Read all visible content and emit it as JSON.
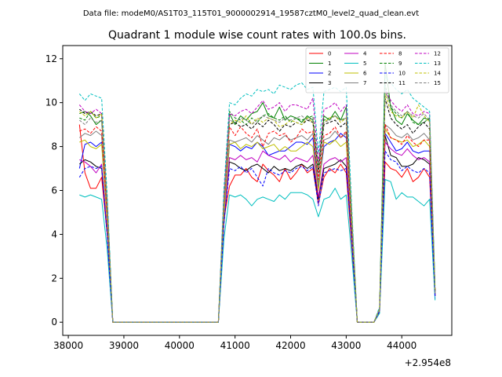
{
  "suptitle": "Data file: modeM0/AS1T03_115T01_9000002914_19587cztM0_level2_quad_clean.evt",
  "chart_data": {
    "type": "line",
    "title": "Quadrant 1 module wise count rates with 100.0s bins.",
    "xlabel": "",
    "ylabel": "",
    "x_offset_label": "+2.954e8",
    "xlim": [
      37900,
      44900
    ],
    "ylim": [
      -0.6,
      12.6
    ],
    "xticks": [
      "38000",
      "39000",
      "40000",
      "41000",
      "42000",
      "43000",
      "44000"
    ],
    "yticks": [
      "0",
      "2",
      "4",
      "6",
      "8",
      "10",
      "12"
    ],
    "grid": false,
    "legend_position": "top-right",
    "x": [
      38200,
      38300,
      38400,
      38500,
      38600,
      38700,
      38800,
      38900,
      39000,
      39100,
      39200,
      39300,
      39400,
      39500,
      39600,
      39700,
      39800,
      39900,
      40000,
      40100,
      40200,
      40300,
      40400,
      40500,
      40600,
      40700,
      40800,
      40900,
      41000,
      41100,
      41200,
      41300,
      41400,
      41500,
      41600,
      41700,
      41800,
      41900,
      42000,
      42100,
      42200,
      42300,
      42400,
      42500,
      42600,
      42700,
      42800,
      42900,
      43000,
      43100,
      43200,
      43300,
      43400,
      43500,
      43600,
      43700,
      43800,
      43900,
      44000,
      44100,
      44200,
      44300,
      44400,
      44500,
      44600
    ],
    "series": [
      {
        "name": "0",
        "color": "#ff0000",
        "dash": "solid",
        "values": [
          9.0,
          6.8,
          6.1,
          6.1,
          6.6,
          4.0,
          0,
          0,
          0,
          0,
          0,
          0,
          0,
          0,
          0,
          0,
          0,
          0,
          0,
          0,
          0,
          0,
          0,
          0,
          0,
          0,
          4.7,
          6.2,
          6.7,
          6.7,
          7.0,
          6.6,
          6.4,
          7.2,
          6.9,
          6.7,
          6.4,
          7.0,
          6.5,
          6.8,
          7.2,
          6.8,
          7.0,
          5.4,
          6.6,
          7.0,
          6.8,
          7.2,
          6.8,
          3.5,
          0,
          0,
          0,
          0,
          0.5,
          7.3,
          7.0,
          6.9,
          6.6,
          7.0,
          6.4,
          6.6,
          7.0,
          6.6,
          1.2
        ]
      },
      {
        "name": "1",
        "color": "#008000",
        "dash": "solid",
        "values": [
          9.5,
          9.6,
          9.4,
          9.0,
          9.2,
          5.5,
          0,
          0,
          0,
          0,
          0,
          0,
          0,
          0,
          0,
          0,
          0,
          0,
          0,
          0,
          0,
          0,
          0,
          0,
          0,
          0,
          5.5,
          9.5,
          9.0,
          9.4,
          9.2,
          9.5,
          9.6,
          10.0,
          9.4,
          9.3,
          9.8,
          9.2,
          9.4,
          9.3,
          9.1,
          9.4,
          9.2,
          7.0,
          9.4,
          9.2,
          9.6,
          9.2,
          9.8,
          4.8,
          0,
          0,
          0,
          0,
          0.6,
          11.8,
          9.8,
          9.2,
          9.0,
          9.5,
          9.2,
          9.0,
          9.3,
          9.2,
          1.4
        ]
      },
      {
        "name": "2",
        "color": "#0000ff",
        "dash": "solid",
        "values": [
          7.0,
          8.1,
          8.2,
          8.0,
          8.2,
          4.6,
          0,
          0,
          0,
          0,
          0,
          0,
          0,
          0,
          0,
          0,
          0,
          0,
          0,
          0,
          0,
          0,
          0,
          0,
          0,
          0,
          5.0,
          8.1,
          8.0,
          7.8,
          8.0,
          7.9,
          8.2,
          8.0,
          7.6,
          7.7,
          7.8,
          7.8,
          8.0,
          8.2,
          8.2,
          8.1,
          8.4,
          6.1,
          8.0,
          8.2,
          8.3,
          8.6,
          8.4,
          4.2,
          0,
          0,
          0,
          0,
          0.5,
          8.6,
          8.2,
          7.8,
          7.9,
          8.2,
          7.8,
          7.7,
          7.8,
          7.8,
          1.3
        ]
      },
      {
        "name": "3",
        "color": "#000000",
        "dash": "solid",
        "values": [
          7.2,
          7.4,
          7.3,
          7.1,
          7.0,
          4.0,
          0,
          0,
          0,
          0,
          0,
          0,
          0,
          0,
          0,
          0,
          0,
          0,
          0,
          0,
          0,
          0,
          0,
          0,
          0,
          0,
          4.5,
          7.3,
          7.2,
          7.0,
          6.9,
          7.1,
          7.2,
          7.0,
          6.8,
          7.1,
          6.9,
          7.0,
          6.9,
          7.1,
          7.2,
          7.0,
          7.2,
          5.6,
          7.0,
          7.1,
          7.2,
          7.4,
          7.1,
          3.8,
          0,
          0,
          0,
          0,
          0.5,
          8.5,
          7.6,
          7.5,
          7.1,
          7.1,
          7.2,
          7.5,
          7.4,
          7.2,
          1.2
        ]
      },
      {
        "name": "4",
        "color": "#c000c0",
        "dash": "solid",
        "values": [
          7.4,
          7.3,
          7.1,
          6.8,
          7.2,
          4.1,
          0,
          0,
          0,
          0,
          0,
          0,
          0,
          0,
          0,
          0,
          0,
          0,
          0,
          0,
          0,
          0,
          0,
          0,
          0,
          0,
          4.6,
          7.5,
          7.4,
          7.6,
          7.4,
          7.5,
          7.3,
          7.8,
          7.6,
          7.5,
          7.4,
          7.6,
          7.3,
          7.5,
          7.4,
          7.3,
          7.6,
          5.7,
          7.2,
          7.4,
          7.5,
          7.3,
          7.5,
          3.9,
          0,
          0,
          0,
          0,
          0.5,
          8.2,
          7.9,
          7.7,
          7.6,
          7.9,
          7.6,
          7.4,
          7.5,
          7.3,
          1.2
        ]
      },
      {
        "name": "5",
        "color": "#00bfbf",
        "dash": "solid",
        "values": [
          5.8,
          5.7,
          5.8,
          5.7,
          5.6,
          3.3,
          0,
          0,
          0,
          0,
          0,
          0,
          0,
          0,
          0,
          0,
          0,
          0,
          0,
          0,
          0,
          0,
          0,
          0,
          0,
          0,
          3.8,
          5.8,
          5.7,
          5.8,
          5.6,
          5.3,
          5.6,
          5.7,
          5.6,
          5.5,
          5.8,
          5.6,
          5.9,
          5.9,
          5.9,
          5.8,
          5.6,
          4.8,
          5.6,
          5.7,
          6.1,
          5.6,
          5.8,
          3.0,
          0,
          0,
          0,
          0,
          0.4,
          6.5,
          6.4,
          5.6,
          5.9,
          5.7,
          5.7,
          5.5,
          5.3,
          5.6,
          1.0
        ]
      },
      {
        "name": "6",
        "color": "#bfbf00",
        "dash": "solid",
        "values": [
          8.2,
          8.3,
          8.0,
          7.9,
          8.1,
          4.5,
          0,
          0,
          0,
          0,
          0,
          0,
          0,
          0,
          0,
          0,
          0,
          0,
          0,
          0,
          0,
          0,
          0,
          0,
          0,
          0,
          4.9,
          8.1,
          8.2,
          7.9,
          8.1,
          8.0,
          8.2,
          7.9,
          8.0,
          8.1,
          7.8,
          8.0,
          7.8,
          7.8,
          8.0,
          8.2,
          8.0,
          6.0,
          8.2,
          8.1,
          8.3,
          8.0,
          8.2,
          4.1,
          0,
          0,
          0,
          0,
          0.5,
          8.8,
          8.4,
          8.3,
          8.2,
          8.3,
          8.0,
          8.1,
          8.3,
          8.0,
          1.3
        ]
      },
      {
        "name": "7",
        "color": "#808080",
        "dash": "solid",
        "values": [
          8.4,
          8.6,
          8.5,
          8.7,
          8.5,
          4.8,
          0,
          0,
          0,
          0,
          0,
          0,
          0,
          0,
          0,
          0,
          0,
          0,
          0,
          0,
          0,
          0,
          0,
          0,
          0,
          0,
          5.2,
          8.3,
          8.2,
          8.3,
          8.4,
          8.2,
          8.5,
          8.3,
          8.1,
          8.4,
          8.3,
          8.5,
          8.3,
          8.4,
          8.5,
          8.3,
          8.6,
          6.3,
          8.3,
          8.4,
          8.7,
          8.4,
          8.6,
          4.3,
          0,
          0,
          0,
          0,
          0.5,
          9.0,
          8.8,
          8.5,
          8.4,
          8.6,
          8.3,
          8.4,
          8.6,
          8.3,
          1.3
        ]
      },
      {
        "name": "8",
        "color": "#ff0000",
        "dash": "dashed",
        "values": [
          8.7,
          8.8,
          8.6,
          8.9,
          8.7,
          4.9,
          0,
          0,
          0,
          0,
          0,
          0,
          0,
          0,
          0,
          0,
          0,
          0,
          0,
          0,
          0,
          0,
          0,
          0,
          0,
          0,
          5.4,
          8.9,
          8.5,
          8.9,
          8.6,
          8.4,
          8.8,
          8.0,
          8.6,
          8.7,
          8.5,
          8.6,
          8.2,
          8.4,
          8.8,
          8.6,
          8.7,
          6.5,
          8.5,
          8.6,
          8.9,
          8.4,
          8.7,
          4.4,
          0,
          0,
          0,
          0,
          0.6,
          9.0,
          8.4,
          8.3,
          8.1,
          8.5,
          8.2,
          8.0,
          8.3,
          8.3,
          1.4
        ]
      },
      {
        "name": "9",
        "color": "#008000",
        "dash": "dashed",
        "values": [
          9.3,
          9.2,
          9.6,
          9.3,
          9.4,
          5.3,
          0,
          0,
          0,
          0,
          0,
          0,
          0,
          0,
          0,
          0,
          0,
          0,
          0,
          0,
          0,
          0,
          0,
          0,
          0,
          0,
          5.6,
          9.6,
          9.3,
          9.2,
          9.0,
          9.3,
          9.1,
          9.4,
          9.5,
          9.3,
          9.2,
          9.4,
          9.1,
          9.3,
          9.2,
          9.3,
          9.4,
          7.0,
          9.2,
          9.3,
          9.4,
          9.2,
          9.3,
          4.8,
          0,
          0,
          0,
          0,
          0.6,
          10.8,
          9.8,
          9.5,
          9.3,
          9.6,
          9.1,
          9.0,
          9.1,
          9.3,
          1.4
        ]
      },
      {
        "name": "10",
        "color": "#0000ff",
        "dash": "dashed",
        "values": [
          6.6,
          7.0,
          7.1,
          7.0,
          7.1,
          3.9,
          0,
          0,
          0,
          0,
          0,
          0,
          0,
          0,
          0,
          0,
          0,
          0,
          0,
          0,
          0,
          0,
          0,
          0,
          0,
          0,
          4.5,
          7.0,
          6.9,
          7.1,
          6.8,
          7.0,
          6.6,
          6.2,
          7.0,
          6.8,
          6.7,
          6.9,
          6.8,
          7.0,
          7.1,
          6.9,
          7.1,
          5.3,
          6.8,
          6.9,
          7.0,
          6.9,
          7.0,
          3.7,
          0,
          0,
          0,
          0,
          0.5,
          7.8,
          7.4,
          7.3,
          6.9,
          7.1,
          6.9,
          6.8,
          7.0,
          6.8,
          1.1
        ]
      },
      {
        "name": "11",
        "color": "#000000",
        "dash": "dashed",
        "values": [
          9.7,
          9.5,
          9.6,
          9.4,
          9.5,
          5.4,
          0,
          0,
          0,
          0,
          0,
          0,
          0,
          0,
          0,
          0,
          0,
          0,
          0,
          0,
          0,
          0,
          0,
          0,
          0,
          0,
          5.6,
          9.0,
          9.1,
          8.9,
          9.0,
          8.8,
          9.1,
          8.9,
          9.2,
          9.0,
          8.7,
          9.0,
          8.9,
          9.1,
          9.0,
          9.2,
          9.1,
          6.8,
          9.0,
          9.1,
          9.2,
          8.9,
          9.1,
          4.7,
          0,
          0,
          0,
          0,
          0.6,
          10.2,
          9.3,
          9.0,
          8.8,
          9.0,
          8.6,
          8.9,
          9.1,
          8.8,
          1.4
        ]
      },
      {
        "name": "12",
        "color": "#c000c0",
        "dash": "dashed",
        "values": [
          9.9,
          9.6,
          9.5,
          9.7,
          9.5,
          5.4,
          0,
          0,
          0,
          0,
          0,
          0,
          0,
          0,
          0,
          0,
          0,
          0,
          0,
          0,
          0,
          0,
          0,
          0,
          0,
          0,
          5.8,
          9.5,
          9.4,
          9.6,
          9.7,
          9.5,
          9.8,
          10.1,
          9.7,
          9.8,
          10.0,
          9.6,
          9.9,
          9.9,
          9.8,
          9.7,
          10.2,
          7.3,
          9.7,
          9.8,
          10.0,
          9.6,
          9.9,
          4.9,
          0,
          0,
          0,
          0,
          0.6,
          10.6,
          10.1,
          9.8,
          9.6,
          9.9,
          9.5,
          9.4,
          9.6,
          9.5,
          1.5
        ]
      },
      {
        "name": "13",
        "color": "#00bfbf",
        "dash": "dashed",
        "values": [
          10.4,
          10.1,
          10.4,
          10.3,
          10.2,
          5.8,
          0,
          0,
          0,
          0,
          0,
          0,
          0,
          0,
          0,
          0,
          0,
          0,
          0,
          0,
          0,
          0,
          0,
          0,
          0,
          0,
          6.1,
          10.0,
          9.9,
          10.2,
          10.4,
          10.3,
          10.6,
          10.5,
          10.6,
          10.4,
          10.8,
          10.7,
          10.6,
          10.8,
          10.9,
          10.6,
          10.7,
          7.7,
          10.5,
          10.6,
          10.7,
          10.5,
          10.7,
          5.2,
          0,
          0,
          0,
          0,
          0.7,
          11.2,
          10.9,
          10.6,
          10.4,
          10.6,
          10.2,
          10.0,
          9.8,
          9.6,
          1.6
        ]
      },
      {
        "name": "14",
        "color": "#bfbf00",
        "dash": "dashed",
        "values": [
          9.6,
          9.4,
          9.6,
          9.3,
          9.5,
          5.3,
          0,
          0,
          0,
          0,
          0,
          0,
          0,
          0,
          0,
          0,
          0,
          0,
          0,
          0,
          0,
          0,
          0,
          0,
          0,
          0,
          5.5,
          9.0,
          9.2,
          9.1,
          9.4,
          9.0,
          9.3,
          9.1,
          9.3,
          9.2,
          8.9,
          9.0,
          9.2,
          9.1,
          9.0,
          9.3,
          9.1,
          6.9,
          9.1,
          9.3,
          9.4,
          9.1,
          9.3,
          4.7,
          0,
          0,
          0,
          0,
          0.6,
          10.4,
          9.6,
          9.4,
          9.3,
          9.6,
          9.3,
          9.9,
          9.4,
          9.1,
          1.4
        ]
      },
      {
        "name": "15",
        "color": "#808080",
        "dash": "dashed",
        "values": [
          9.2,
          9.0,
          9.3,
          9.1,
          9.2,
          5.2,
          0,
          0,
          0,
          0,
          0,
          0,
          0,
          0,
          0,
          0,
          0,
          0,
          0,
          0,
          0,
          0,
          0,
          0,
          0,
          0,
          5.5,
          9.2,
          9.1,
          9.3,
          9.2,
          9.0,
          9.2,
          9.4,
          9.3,
          9.2,
          9.1,
          9.3,
          9.2,
          9.3,
          9.4,
          9.2,
          9.3,
          6.9,
          9.1,
          9.2,
          9.4,
          9.2,
          9.3,
          4.7,
          0,
          0,
          0,
          0,
          0.6,
          10.5,
          9.9,
          9.6,
          9.4,
          9.6,
          9.4,
          9.3,
          9.5,
          9.2,
          1.4
        ]
      }
    ]
  }
}
